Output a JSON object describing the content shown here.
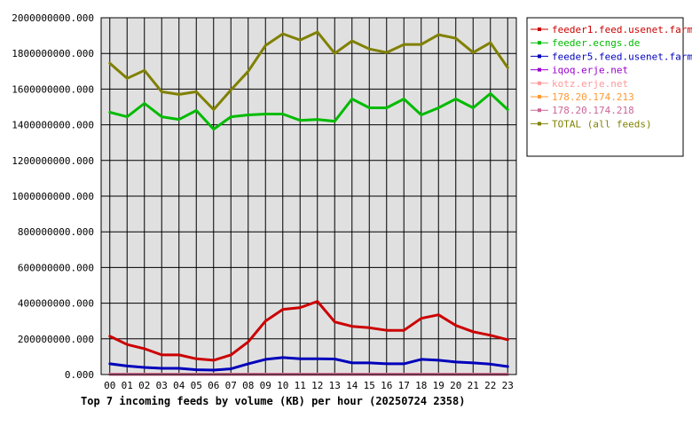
{
  "chart_data": {
    "type": "line",
    "title": "Top 7 incoming feeds by volume (KB) per hour (20250724 2358)",
    "xlabel": "",
    "ylabel": "",
    "categories": [
      "00",
      "01",
      "02",
      "03",
      "04",
      "05",
      "06",
      "07",
      "08",
      "09",
      "10",
      "11",
      "12",
      "13",
      "14",
      "15",
      "16",
      "17",
      "18",
      "19",
      "20",
      "21",
      "22",
      "23"
    ],
    "ylim": [
      0,
      2000000000
    ],
    "yticks": [
      0,
      200000000,
      400000000,
      600000000,
      800000000,
      1000000000,
      1200000000,
      1400000000,
      1600000000,
      1800000000,
      2000000000
    ],
    "ytick_labels": [
      "0.000",
      "200000000.000",
      "400000000.000",
      "600000000.000",
      "800000000.000",
      "1000000000.000",
      "1200000000.000",
      "1400000000.000",
      "1600000000.000",
      "1800000000.000",
      "2000000000.000"
    ],
    "grid": true,
    "legend_position": "right",
    "series": [
      {
        "name": "feeder1.feed.usenet.farm",
        "color": "#cc0000",
        "values": [
          215000000,
          168000000,
          145000000,
          110000000,
          110000000,
          88000000,
          80000000,
          110000000,
          183000000,
          300000000,
          365000000,
          375000000,
          410000000,
          295000000,
          270000000,
          262000000,
          248000000,
          248000000,
          315000000,
          335000000,
          275000000,
          240000000,
          220000000,
          195000000
        ]
      },
      {
        "name": "feeder.ecngs.de",
        "color": "#00bb00",
        "values": [
          1470000000,
          1445000000,
          1520000000,
          1445000000,
          1430000000,
          1480000000,
          1375000000,
          1445000000,
          1455000000,
          1460000000,
          1460000000,
          1425000000,
          1430000000,
          1420000000,
          1545000000,
          1495000000,
          1495000000,
          1545000000,
          1455000000,
          1495000000,
          1545000000,
          1495000000,
          1575000000,
          1485000000
        ]
      },
      {
        "name": "feeder5.feed.usenet.farm",
        "color": "#0000bb",
        "values": [
          60000000,
          48000000,
          40000000,
          35000000,
          35000000,
          27000000,
          25000000,
          32000000,
          60000000,
          85000000,
          95000000,
          88000000,
          88000000,
          87000000,
          65000000,
          65000000,
          60000000,
          60000000,
          85000000,
          80000000,
          70000000,
          65000000,
          58000000,
          45000000
        ]
      },
      {
        "name": "iqoq.erje.net",
        "color": "#9900cc",
        "values": [
          1000000,
          1000000,
          1000000,
          1000000,
          1000000,
          1000000,
          1000000,
          1000000,
          1000000,
          1000000,
          1000000,
          1000000,
          1000000,
          1000000,
          1000000,
          1000000,
          1000000,
          1000000,
          1000000,
          1000000,
          1000000,
          1000000,
          1000000,
          1000000
        ]
      },
      {
        "name": "kotz.erje.net",
        "color": "#ff9999",
        "values": [
          2000000,
          2000000,
          2000000,
          2000000,
          2000000,
          2000000,
          2000000,
          2000000,
          2000000,
          2000000,
          2000000,
          2000000,
          2000000,
          2000000,
          2000000,
          2000000,
          2000000,
          2000000,
          2000000,
          2000000,
          2000000,
          2000000,
          2000000,
          2000000
        ]
      },
      {
        "name": "178.20.174.213",
        "color": "#ff9933",
        "values": [
          1000000,
          1000000,
          1000000,
          1000000,
          1000000,
          1000000,
          1000000,
          1000000,
          1000000,
          1000000,
          1000000,
          1000000,
          1000000,
          1000000,
          1000000,
          1000000,
          1000000,
          1000000,
          1000000,
          1000000,
          1000000,
          1000000,
          1000000,
          1000000
        ]
      },
      {
        "name": "178.20.174.218",
        "color": "#cc6699",
        "values": [
          1000000,
          1000000,
          1000000,
          1000000,
          1000000,
          1000000,
          1000000,
          1000000,
          1000000,
          1000000,
          1000000,
          1000000,
          1000000,
          1000000,
          1000000,
          1000000,
          1000000,
          1000000,
          1000000,
          1000000,
          1000000,
          1000000,
          1000000,
          1000000
        ]
      },
      {
        "name": "TOTAL (all feeds)",
        "color": "#808000",
        "values": [
          1745000000,
          1660000000,
          1705000000,
          1585000000,
          1570000000,
          1585000000,
          1485000000,
          1595000000,
          1700000000,
          1845000000,
          1910000000,
          1875000000,
          1920000000,
          1800000000,
          1870000000,
          1825000000,
          1805000000,
          1850000000,
          1850000000,
          1905000000,
          1885000000,
          1805000000,
          1860000000,
          1720000000
        ]
      }
    ]
  }
}
